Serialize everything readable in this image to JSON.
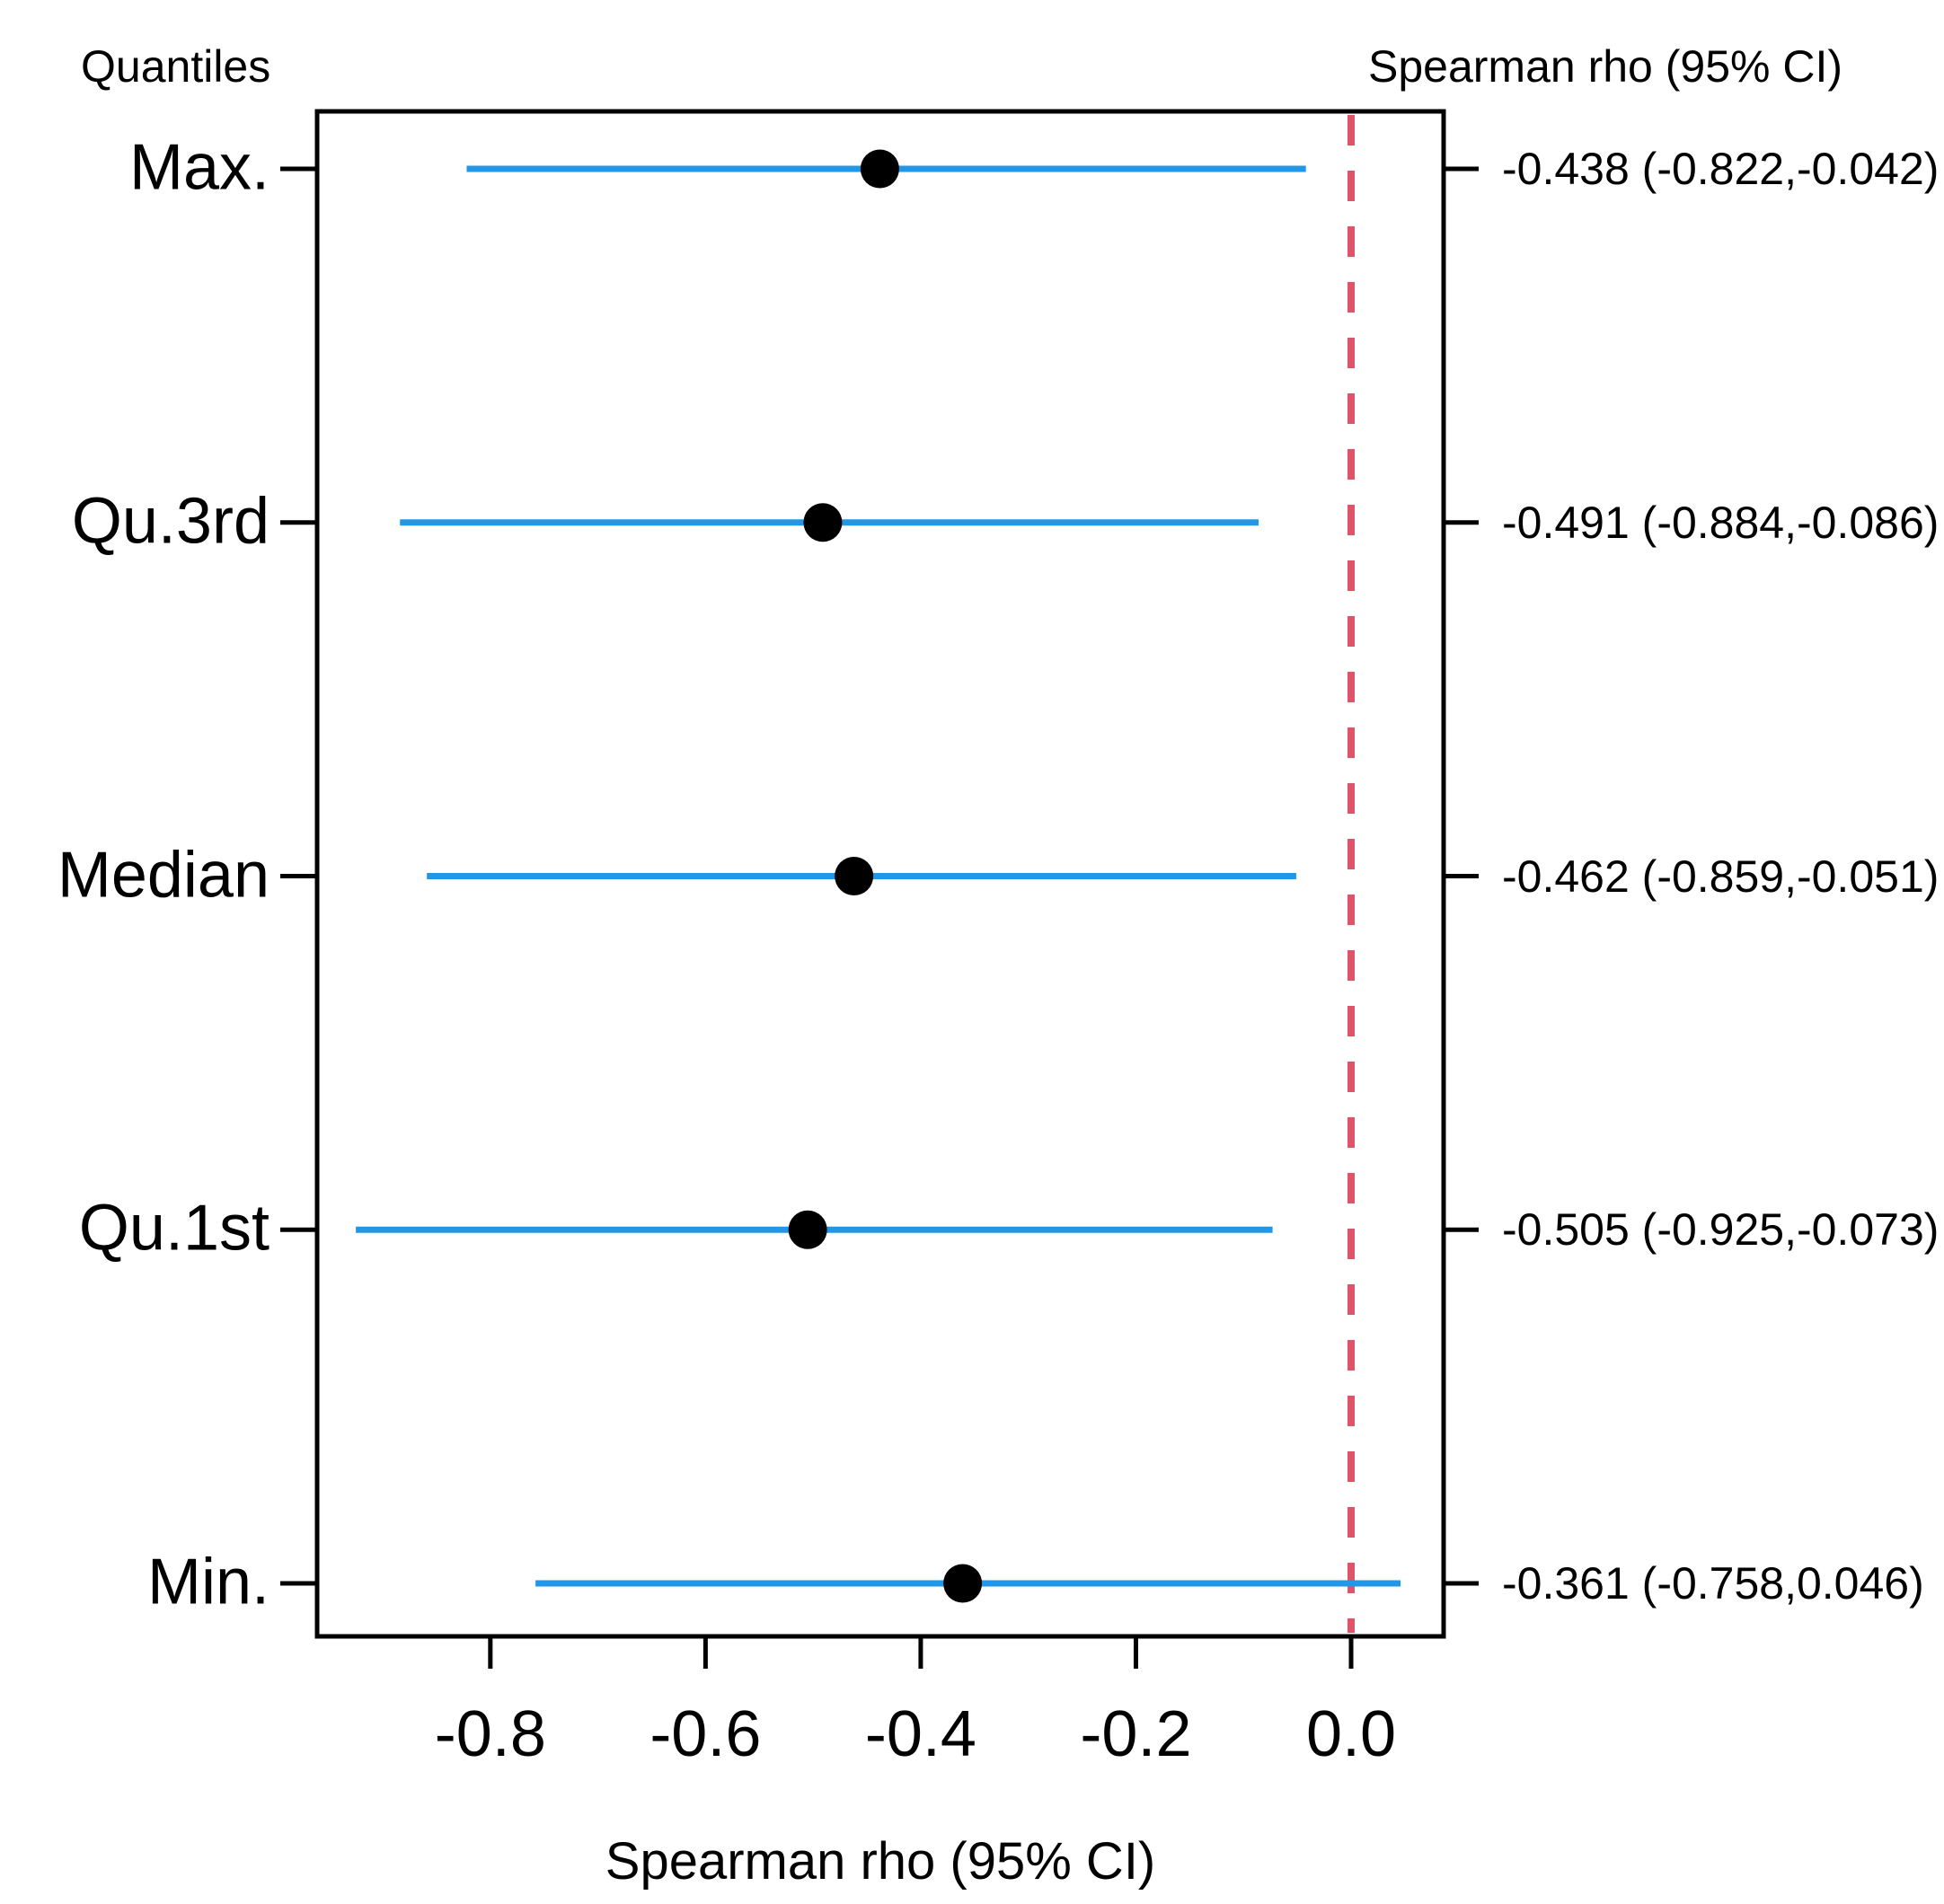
{
  "figure": {
    "left_header": "Quantiles",
    "right_header": "Spearman rho (95% CI)",
    "xlabel": "Spearman rho (95% CI)"
  },
  "colors": {
    "ci_line": "#2297E6",
    "reference_line": "#DF536B",
    "marker": "#000000",
    "axis": "#000000",
    "text": "#000000",
    "background": "#FFFFFF"
  },
  "chart_data": {
    "type": "scatter",
    "subtype": "forest_plot",
    "orientation": "horizontal",
    "title": "",
    "xlabel": "Spearman rho (95% CI)",
    "left_header": "Quantiles",
    "right_header": "Spearman rho (95% CI)",
    "ci_level": "95%",
    "categories": [
      "Max.",
      "Qu.3rd",
      "Median",
      "Qu.1st",
      "Min."
    ],
    "rows": [
      {
        "label": "Max.",
        "estimate": -0.438,
        "ci_low": -0.822,
        "ci_high": -0.042,
        "text": "-0.438 (-0.822,-0.042)"
      },
      {
        "label": "Qu.3rd",
        "estimate": -0.491,
        "ci_low": -0.884,
        "ci_high": -0.086,
        "text": "-0.491 (-0.884,-0.086)"
      },
      {
        "label": "Median",
        "estimate": -0.462,
        "ci_low": -0.859,
        "ci_high": -0.051,
        "text": "-0.462 (-0.859,-0.051)"
      },
      {
        "label": "Qu.1st",
        "estimate": -0.505,
        "ci_low": -0.925,
        "ci_high": -0.073,
        "text": "-0.505 (-0.925,-0.073)"
      },
      {
        "label": "Min.",
        "estimate": -0.361,
        "ci_low": -0.758,
        "ci_high": 0.046,
        "text": "-0.361 (-0.758,0.046)"
      }
    ],
    "xticks": {
      "values": [
        -0.8,
        -0.6,
        -0.4,
        -0.2,
        0.0
      ],
      "labels": [
        "-0.8",
        "-0.6",
        "-0.4",
        "-0.2",
        "0.0"
      ]
    },
    "xlim": [
      -0.961,
      0.086
    ],
    "reference_line_x": 0.0,
    "grid": false,
    "legend": "none"
  }
}
